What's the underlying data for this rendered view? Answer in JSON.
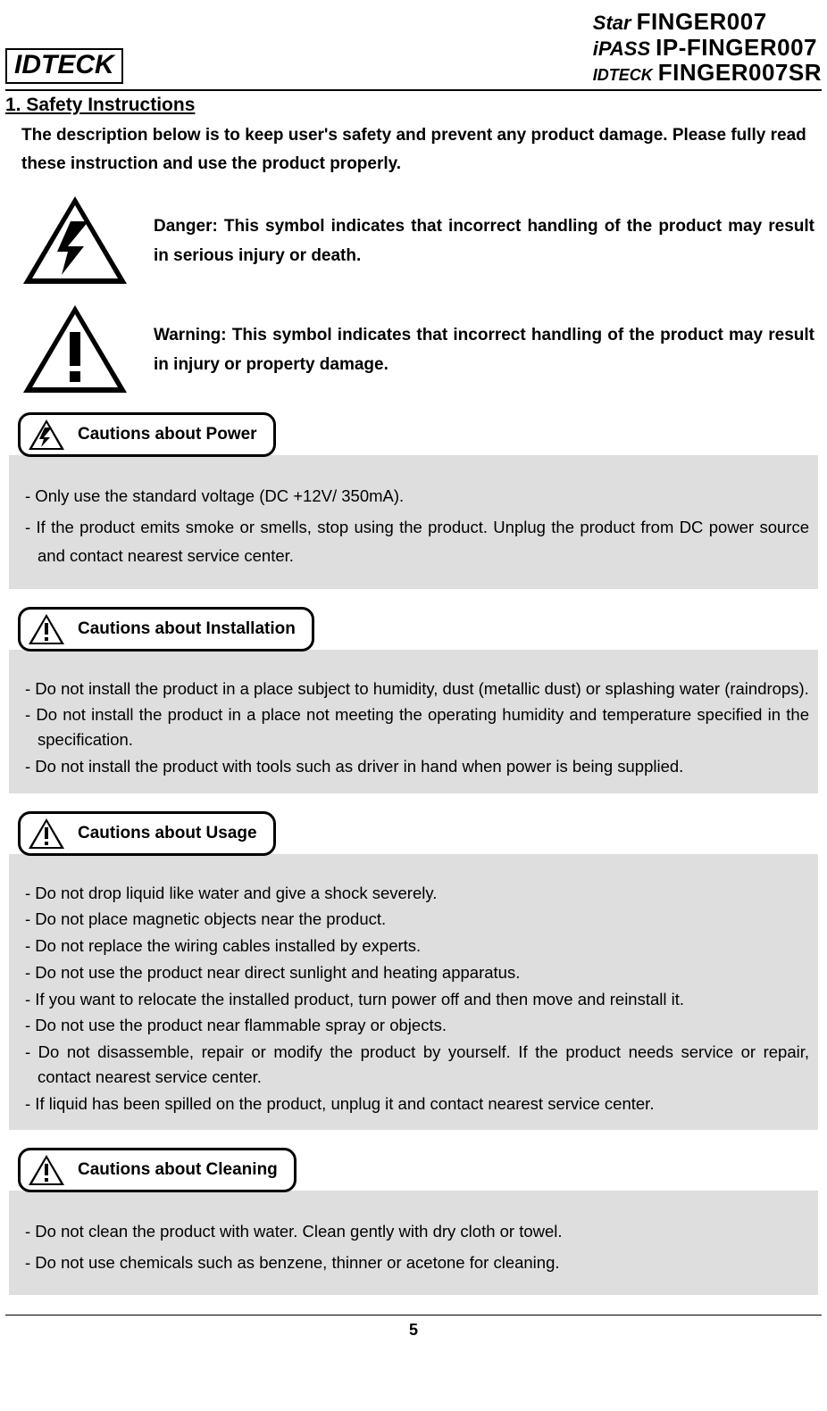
{
  "header": {
    "logo_left": "IDTECK",
    "right": [
      {
        "brand": "Star",
        "model": "FINGER007"
      },
      {
        "brand": "iPASS",
        "model": "IP-FINGER007"
      },
      {
        "brand": "IDTECK",
        "model": "FINGER007SR"
      }
    ]
  },
  "section_title": "1. Safety Instructions",
  "intro": "The description below is to keep user's safety and prevent any product damage. Please fully read these instruction and use the product properly.",
  "symbols": {
    "danger": "Danger: This symbol indicates that incorrect handling of the product may result in serious injury or death.",
    "warning": "Warning: This symbol indicates that incorrect handling of the product may result in injury or property damage."
  },
  "cautions": [
    {
      "icon": "bolt",
      "title": "Cautions about Power",
      "items": [
        "- Only use the standard voltage (DC +12V/ 350mA).",
        "- If the product emits smoke or smells, stop using the product. Unplug the product from DC power source and contact nearest service center."
      ]
    },
    {
      "icon": "excl",
      "title": "Cautions about Installation",
      "items": [
        "- Do not install the product in a place subject to humidity, dust (metallic dust) or splashing water (raindrops).",
        "- Do not install the product in a place not meeting the operating humidity and temperature specified in the specification.",
        "- Do not install the product with tools such as driver in hand when power is being supplied."
      ]
    },
    {
      "icon": "excl",
      "title": "Cautions about Usage",
      "items": [
        "- Do not drop liquid like water and give a shock severely.",
        "- Do not place magnetic objects near the product.",
        "- Do not replace the wiring cables installed by experts.",
        "- Do not use the product near direct sunlight and heating apparatus.",
        "- If you want to relocate the installed product, turn power off and then move and reinstall it.",
        "- Do not use the product near flammable spray or objects.",
        "- Do not disassemble, repair or modify the product by yourself. If the product needs service or repair, contact nearest service center.",
        "- If liquid has been spilled on the product, unplug it and contact nearest service center."
      ]
    },
    {
      "icon": "excl",
      "title": "Cautions about Cleaning",
      "items": [
        "- Do not clean the product with water. Clean gently with dry cloth or towel.",
        "- Do not use chemicals such as benzene, thinner or acetone for cleaning."
      ]
    }
  ],
  "page_number": "5",
  "colors": {
    "bg": "#ffffff",
    "text": "#000000",
    "panel": "#dedede",
    "border": "#000000"
  }
}
